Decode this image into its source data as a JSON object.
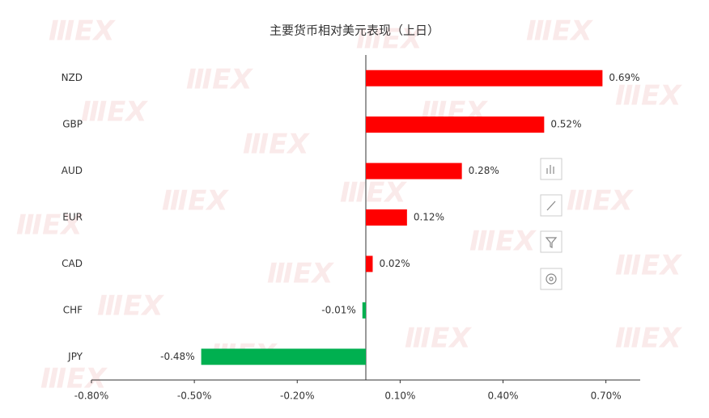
{
  "chart_data": {
    "type": "hbar",
    "title": "主要货币相对美元表现（上日）",
    "categories": [
      "NZD",
      "GBP",
      "AUD",
      "EUR",
      "CAD",
      "CHF",
      "JPY"
    ],
    "values": [
      0.69,
      0.52,
      0.28,
      0.12,
      0.02,
      -0.01,
      -0.48
    ],
    "value_labels": [
      "0.69%",
      "0.52%",
      "0.28%",
      "0.12%",
      "0.02%",
      "-0.01%",
      "-0.48%"
    ],
    "positive_color": "#ff0000",
    "negative_color": "#00b050",
    "xlim": [
      -0.8,
      0.8
    ],
    "xticks": [
      {
        "value": -0.8,
        "label": "-0.80%"
      },
      {
        "value": -0.5,
        "label": "-0.50%"
      },
      {
        "value": -0.2,
        "label": "-0.20%"
      },
      {
        "value": 0.1,
        "label": "0.10%"
      },
      {
        "value": 0.4,
        "label": "0.40%"
      },
      {
        "value": 0.7,
        "label": "0.70%"
      }
    ]
  }
}
